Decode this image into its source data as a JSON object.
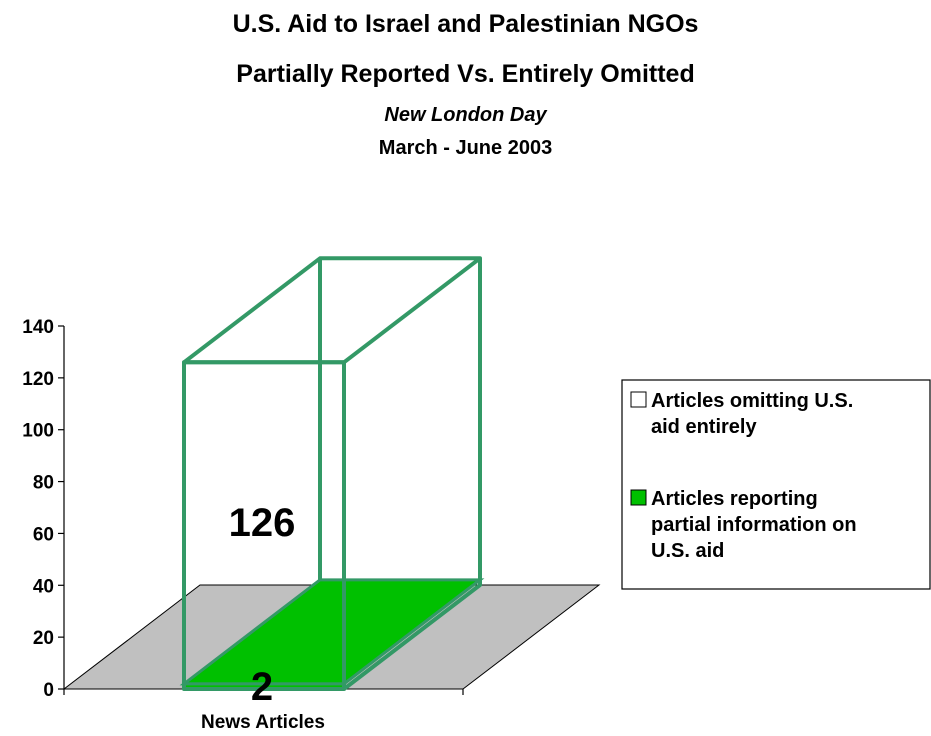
{
  "chart_data": {
    "type": "bar",
    "title": "U.S. Aid to Israel and Palestinian NGOs",
    "subtitle": "Partially Reported Vs. Entirely Omitted",
    "source": "New London Day",
    "period": "March - June 2003",
    "categories": [
      "News Articles"
    ],
    "series": [
      {
        "name": "Articles omitting U.S. aid entirely",
        "values": [
          126
        ],
        "data_label": "126",
        "color": "#ffffff",
        "edge_color": "#339966"
      },
      {
        "name": "Articles reporting partial information on U.S. aid",
        "values": [
          2
        ],
        "data_label": "2",
        "color": "#00c000",
        "edge_color": "#339966"
      }
    ],
    "yticks": [
      "0",
      "20",
      "40",
      "60",
      "80",
      "100",
      "120",
      "140"
    ],
    "ylim": [
      0,
      140
    ],
    "floor_color": "#c0c0c0",
    "legend_position": "right",
    "legend": [
      {
        "lines": [
          "Articles omitting U.S.",
          "aid entirely"
        ],
        "swatch": "#ffffff"
      },
      {
        "lines": [
          "Articles reporting",
          "partial information on",
          "U.S. aid"
        ],
        "swatch": "#00c000"
      }
    ]
  }
}
